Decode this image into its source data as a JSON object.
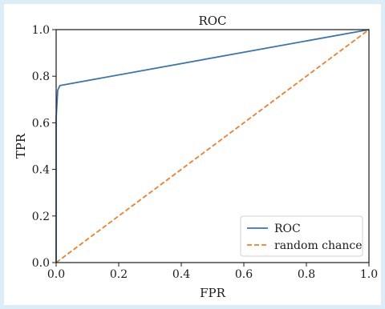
{
  "chart_data": {
    "type": "line",
    "title": "ROC",
    "xlabel": "FPR",
    "ylabel": "TPR",
    "xlim": [
      0.0,
      1.0
    ],
    "ylim": [
      0.0,
      1.0
    ],
    "xticks": [
      "0.0",
      "0.2",
      "0.4",
      "0.6",
      "0.8",
      "1.0"
    ],
    "yticks": [
      "0.0",
      "0.2",
      "0.4",
      "0.6",
      "0.8",
      "1.0"
    ],
    "grid": false,
    "legend_position": "lower-right",
    "series": [
      {
        "name": "ROC",
        "color": "#3a75b0",
        "style": "solid",
        "x": [
          0.0,
          0.0,
          0.005,
          0.012,
          1.0
        ],
        "y": [
          0.0,
          0.62,
          0.74,
          0.76,
          1.0
        ]
      },
      {
        "name": "random chance",
        "color": "#f07f2b",
        "style": "dashed",
        "x": [
          0.0,
          1.0
        ],
        "y": [
          0.0,
          1.0
        ]
      }
    ]
  }
}
